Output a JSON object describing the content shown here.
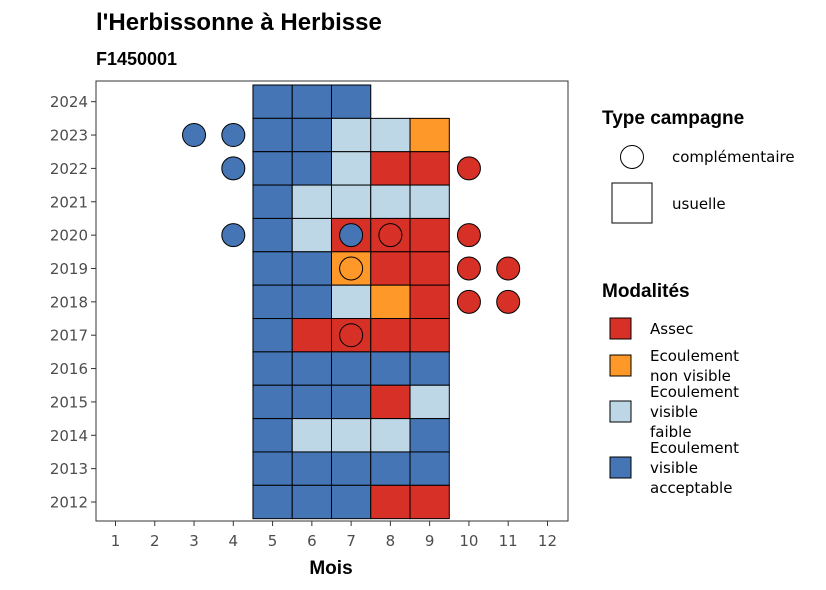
{
  "chart_data": {
    "type": "heatmap",
    "title": "l'Herbissonne à Herbisse",
    "subtitle": "F1450001",
    "xlabel": "Mois",
    "ylabel": "",
    "x_ticks": [
      "1",
      "2",
      "3",
      "4",
      "5",
      "6",
      "7",
      "8",
      "9",
      "10",
      "11",
      "12"
    ],
    "y_ticks": [
      "2012",
      "2013",
      "2014",
      "2015",
      "2016",
      "2017",
      "2018",
      "2019",
      "2020",
      "2021",
      "2022",
      "2023",
      "2024"
    ],
    "grid": false,
    "legend_position": "right",
    "modalites": [
      {
        "key": "assec",
        "label": "Assec",
        "color": "#d73027"
      },
      {
        "key": "nonvisible",
        "label": "Ecoulement non visible",
        "color": "#fe9929"
      },
      {
        "key": "faible",
        "label": "Ecoulement visible faible",
        "color": "#bdd7e7"
      },
      {
        "key": "acceptable",
        "label": "Ecoulement visible acceptable",
        "color": "#4575b4"
      }
    ],
    "type_campagne": {
      "title": "Type campagne",
      "complementaire_label": "complémentaire",
      "usuelle_label": "usuelle"
    },
    "legend_titles": {
      "type_campagne": "Type campagne",
      "modalites": "Modalités"
    },
    "usuelle": [
      {
        "year": 2024,
        "month": 5,
        "mod": "acceptable"
      },
      {
        "year": 2024,
        "month": 6,
        "mod": "acceptable"
      },
      {
        "year": 2024,
        "month": 7,
        "mod": "acceptable"
      },
      {
        "year": 2023,
        "month": 5,
        "mod": "acceptable"
      },
      {
        "year": 2023,
        "month": 6,
        "mod": "acceptable"
      },
      {
        "year": 2023,
        "month": 7,
        "mod": "faible"
      },
      {
        "year": 2023,
        "month": 8,
        "mod": "faible"
      },
      {
        "year": 2023,
        "month": 9,
        "mod": "nonvisible"
      },
      {
        "year": 2022,
        "month": 5,
        "mod": "acceptable"
      },
      {
        "year": 2022,
        "month": 6,
        "mod": "acceptable"
      },
      {
        "year": 2022,
        "month": 7,
        "mod": "faible"
      },
      {
        "year": 2022,
        "month": 8,
        "mod": "assec"
      },
      {
        "year": 2022,
        "month": 9,
        "mod": "assec"
      },
      {
        "year": 2021,
        "month": 5,
        "mod": "acceptable"
      },
      {
        "year": 2021,
        "month": 6,
        "mod": "faible"
      },
      {
        "year": 2021,
        "month": 7,
        "mod": "faible"
      },
      {
        "year": 2021,
        "month": 8,
        "mod": "faible"
      },
      {
        "year": 2021,
        "month": 9,
        "mod": "faible"
      },
      {
        "year": 2020,
        "month": 5,
        "mod": "acceptable"
      },
      {
        "year": 2020,
        "month": 6,
        "mod": "faible"
      },
      {
        "year": 2020,
        "month": 7,
        "mod": "assec"
      },
      {
        "year": 2020,
        "month": 8,
        "mod": "assec"
      },
      {
        "year": 2020,
        "month": 9,
        "mod": "assec"
      },
      {
        "year": 2019,
        "month": 5,
        "mod": "acceptable"
      },
      {
        "year": 2019,
        "month": 6,
        "mod": "acceptable"
      },
      {
        "year": 2019,
        "month": 7,
        "mod": "nonvisible"
      },
      {
        "year": 2019,
        "month": 8,
        "mod": "assec"
      },
      {
        "year": 2019,
        "month": 9,
        "mod": "assec"
      },
      {
        "year": 2018,
        "month": 5,
        "mod": "acceptable"
      },
      {
        "year": 2018,
        "month": 6,
        "mod": "acceptable"
      },
      {
        "year": 2018,
        "month": 7,
        "mod": "faible"
      },
      {
        "year": 2018,
        "month": 8,
        "mod": "nonvisible"
      },
      {
        "year": 2018,
        "month": 9,
        "mod": "assec"
      },
      {
        "year": 2017,
        "month": 5,
        "mod": "acceptable"
      },
      {
        "year": 2017,
        "month": 6,
        "mod": "assec"
      },
      {
        "year": 2017,
        "month": 7,
        "mod": "assec"
      },
      {
        "year": 2017,
        "month": 8,
        "mod": "assec"
      },
      {
        "year": 2017,
        "month": 9,
        "mod": "assec"
      },
      {
        "year": 2016,
        "month": 5,
        "mod": "acceptable"
      },
      {
        "year": 2016,
        "month": 6,
        "mod": "acceptable"
      },
      {
        "year": 2016,
        "month": 7,
        "mod": "acceptable"
      },
      {
        "year": 2016,
        "month": 8,
        "mod": "acceptable"
      },
      {
        "year": 2016,
        "month": 9,
        "mod": "acceptable"
      },
      {
        "year": 2015,
        "month": 5,
        "mod": "acceptable"
      },
      {
        "year": 2015,
        "month": 6,
        "mod": "acceptable"
      },
      {
        "year": 2015,
        "month": 7,
        "mod": "acceptable"
      },
      {
        "year": 2015,
        "month": 8,
        "mod": "assec"
      },
      {
        "year": 2015,
        "month": 9,
        "mod": "faible"
      },
      {
        "year": 2014,
        "month": 5,
        "mod": "acceptable"
      },
      {
        "year": 2014,
        "month": 6,
        "mod": "faible"
      },
      {
        "year": 2014,
        "month": 7,
        "mod": "faible"
      },
      {
        "year": 2014,
        "month": 8,
        "mod": "faible"
      },
      {
        "year": 2014,
        "month": 9,
        "mod": "acceptable"
      },
      {
        "year": 2013,
        "month": 5,
        "mod": "acceptable"
      },
      {
        "year": 2013,
        "month": 6,
        "mod": "acceptable"
      },
      {
        "year": 2013,
        "month": 7,
        "mod": "acceptable"
      },
      {
        "year": 2013,
        "month": 8,
        "mod": "acceptable"
      },
      {
        "year": 2013,
        "month": 9,
        "mod": "acceptable"
      },
      {
        "year": 2012,
        "month": 5,
        "mod": "acceptable"
      },
      {
        "year": 2012,
        "month": 6,
        "mod": "acceptable"
      },
      {
        "year": 2012,
        "month": 7,
        "mod": "acceptable"
      },
      {
        "year": 2012,
        "month": 8,
        "mod": "assec"
      },
      {
        "year": 2012,
        "month": 9,
        "mod": "assec"
      }
    ],
    "complementaire": [
      {
        "year": 2023,
        "month": 3,
        "mod": "acceptable"
      },
      {
        "year": 2023,
        "month": 4,
        "mod": "acceptable"
      },
      {
        "year": 2022,
        "month": 4,
        "mod": "acceptable"
      },
      {
        "year": 2022,
        "month": 10,
        "mod": "assec"
      },
      {
        "year": 2020,
        "month": 4,
        "mod": "acceptable"
      },
      {
        "year": 2020,
        "month": 7,
        "mod": "acceptable"
      },
      {
        "year": 2020,
        "month": 8,
        "mod": "assec"
      },
      {
        "year": 2020,
        "month": 10,
        "mod": "assec"
      },
      {
        "year": 2019,
        "month": 7,
        "mod": "nonvisible"
      },
      {
        "year": 2019,
        "month": 10,
        "mod": "assec"
      },
      {
        "year": 2019,
        "month": 11,
        "mod": "assec"
      },
      {
        "year": 2018,
        "month": 10,
        "mod": "assec"
      },
      {
        "year": 2018,
        "month": 11,
        "mod": "assec"
      },
      {
        "year": 2017,
        "month": 7,
        "mod": "assec"
      }
    ]
  }
}
